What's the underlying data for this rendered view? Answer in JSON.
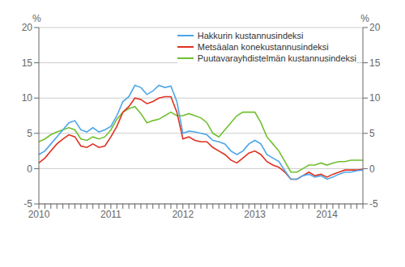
{
  "chart_data": {
    "type": "line",
    "ylabel": "%",
    "y2label": "%",
    "ylim": [
      -5,
      20
    ],
    "yticks": [
      -5,
      0,
      5,
      10,
      15,
      20
    ],
    "y2lim": [
      -5,
      20
    ],
    "y2ticks": [
      -5,
      0,
      5,
      10,
      15,
      20
    ],
    "grid": "y",
    "legend": "upper right",
    "categories": [
      "2010",
      null,
      null,
      null,
      null,
      null,
      null,
      null,
      null,
      null,
      null,
      null,
      "2011",
      null,
      null,
      null,
      null,
      null,
      null,
      null,
      null,
      null,
      null,
      null,
      "2012",
      null,
      null,
      null,
      null,
      null,
      null,
      null,
      null,
      null,
      null,
      null,
      "2013",
      null,
      null,
      null,
      null,
      null,
      null,
      null,
      null,
      null,
      null,
      null,
      "2014",
      null,
      null,
      null,
      null,
      null,
      null
    ],
    "series": [
      {
        "name": "Hakkurin kustannusindeksi",
        "color": "#4da6e8",
        "values": [
          2.0,
          2.5,
          3.5,
          4.5,
          5.5,
          6.5,
          6.8,
          5.5,
          5.2,
          5.8,
          5.2,
          5.5,
          6.0,
          7.5,
          9.5,
          10.2,
          11.8,
          11.5,
          10.5,
          11.0,
          11.8,
          11.5,
          11.7,
          9.5,
          5.0,
          5.3,
          5.2,
          5.0,
          4.8,
          4.0,
          3.8,
          3.5,
          2.5,
          2.0,
          2.5,
          3.5,
          4.0,
          3.5,
          2.0,
          1.5,
          1.0,
          -0.3,
          -1.5,
          -1.5,
          -1.0,
          -0.8,
          -1.2,
          -1.0,
          -1.5,
          -1.2,
          -0.8,
          -0.5,
          -0.5,
          -0.3,
          -0.2
        ]
      },
      {
        "name": "Metsäalan konekustannusindeksi",
        "color": "#e03020",
        "values": [
          0.8,
          1.5,
          2.5,
          3.5,
          4.2,
          4.8,
          4.5,
          3.2,
          3.0,
          3.5,
          3.0,
          3.2,
          4.5,
          6.0,
          8.0,
          8.8,
          10.0,
          9.8,
          9.2,
          9.5,
          10.0,
          10.2,
          10.2,
          8.0,
          4.2,
          4.5,
          4.0,
          3.8,
          3.8,
          3.0,
          2.5,
          2.0,
          1.2,
          0.8,
          1.5,
          2.2,
          2.5,
          2.0,
          1.0,
          0.5,
          0.2,
          -0.5,
          -1.5,
          -1.5,
          -1.0,
          -0.5,
          -1.0,
          -0.8,
          -1.2,
          -0.8,
          -0.5,
          -0.2,
          -0.2,
          -0.2,
          -0.1
        ]
      },
      {
        "name": "Puutavarayhdistelmän kustannusindeksi",
        "color": "#70c030",
        "values": [
          3.8,
          4.2,
          4.8,
          5.2,
          5.5,
          5.8,
          5.5,
          4.2,
          4.0,
          4.5,
          4.2,
          4.5,
          5.5,
          7.0,
          8.0,
          8.5,
          8.8,
          7.8,
          6.5,
          6.8,
          7.0,
          7.5,
          8.0,
          7.5,
          7.5,
          7.8,
          7.5,
          7.2,
          6.5,
          5.0,
          4.5,
          5.5,
          6.5,
          7.5,
          8.0,
          8.0,
          8.0,
          6.5,
          4.5,
          3.5,
          2.5,
          1.0,
          -0.5,
          -0.5,
          0.0,
          0.5,
          0.5,
          0.8,
          0.5,
          0.8,
          1.0,
          1.0,
          1.2,
          1.2,
          1.2
        ]
      }
    ]
  }
}
